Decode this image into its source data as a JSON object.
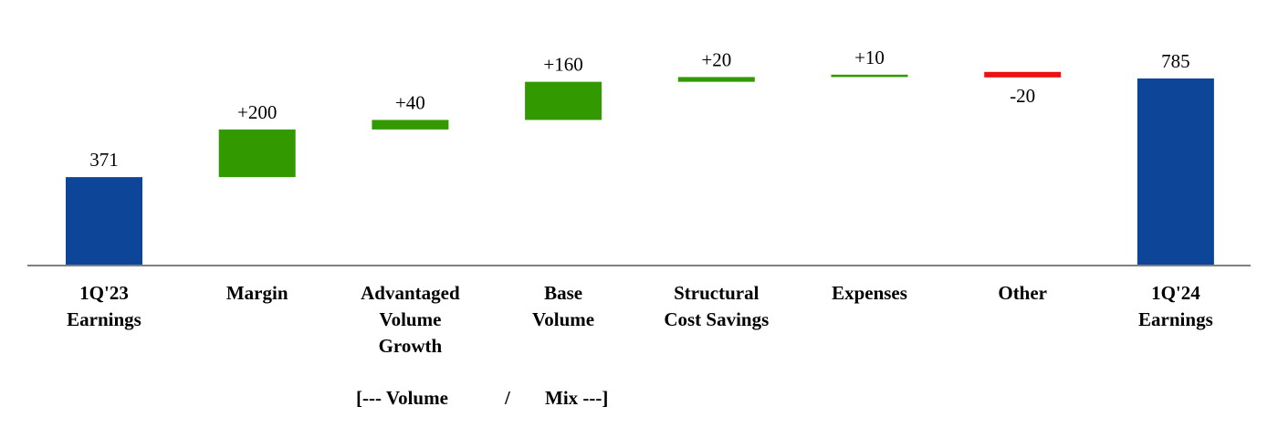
{
  "chart_data": {
    "type": "bar",
    "subtype": "waterfall",
    "categories": [
      [
        "1Q'23",
        "Earnings"
      ],
      [
        "Margin"
      ],
      [
        "Advantaged",
        "Volume",
        "Growth"
      ],
      [
        "Base",
        "Volume"
      ],
      [
        "Structural",
        "Cost Savings"
      ],
      [
        "Expenses"
      ],
      [
        "Other"
      ],
      [
        "1Q'24",
        "Earnings"
      ]
    ],
    "steps": [
      {
        "kind": "total",
        "value": 371,
        "label": "371"
      },
      {
        "kind": "delta",
        "value": 200,
        "label": "+200"
      },
      {
        "kind": "delta",
        "value": 40,
        "label": "+40"
      },
      {
        "kind": "delta",
        "value": 160,
        "label": "+160"
      },
      {
        "kind": "delta",
        "value": 20,
        "label": "+20"
      },
      {
        "kind": "delta",
        "value": 10,
        "label": "+10"
      },
      {
        "kind": "delta",
        "value": -20,
        "label": "-20"
      },
      {
        "kind": "total",
        "value": 785,
        "label": "785"
      }
    ],
    "group_annotation": {
      "parts": [
        "[--- Volume",
        "/",
        "Mix ---]"
      ],
      "spans_categories": [
        2,
        3
      ]
    },
    "colors": {
      "total": "#0d4699",
      "increase": "#339900",
      "decrease": "#ee1111",
      "axis": "#808080"
    },
    "title": "",
    "xlabel": "",
    "ylabel": "",
    "ylim": [
      0,
      850
    ],
    "grid": false,
    "legend": "none"
  }
}
